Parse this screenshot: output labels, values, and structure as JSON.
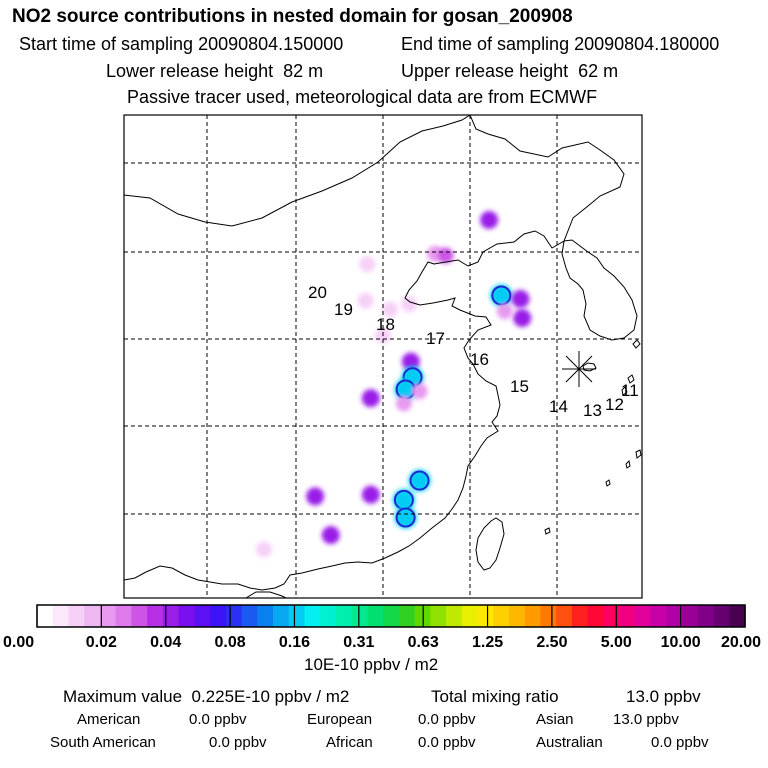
{
  "title": "NO2 source contributions in nested domain for gosan_200908",
  "header": {
    "start_label": "Start time of sampling",
    "start_value": "20090804.150000",
    "end_label": "End time of sampling",
    "end_value": "20090804.180000",
    "lower_label": "Lower release height",
    "lower_value": "82 m",
    "upper_label": "Upper release height",
    "upper_value": "62 m",
    "tracer_note": "Passive tracer used, meteorological data are from ECMWF"
  },
  "chart_data": {
    "type": "heatmap",
    "map_region": "East Asia (China, Korea, Japan)",
    "receptor": "gosan",
    "trajectory_labels": [
      "20",
      "19",
      "18",
      "17",
      "16",
      "15",
      "14",
      "13",
      "12",
      "11"
    ],
    "colorbar": {
      "unit": "10E-10 ppbv / m2",
      "tick_labels": [
        "0.00",
        "0.02",
        "0.04",
        "0.08",
        "0.16",
        "0.31",
        "0.63",
        "1.25",
        "2.50",
        "5.00",
        "10.00",
        "20.00"
      ],
      "colors": [
        "#ffffff",
        "#fbe8fb",
        "#f6d0f7",
        "#f0b8f3",
        "#e899f0",
        "#de7aeb",
        "#cc55e6",
        "#b830e6",
        "#9a1ee8",
        "#7a10ee",
        "#5c10f4",
        "#3c14f6",
        "#2a30f4",
        "#1a5af0",
        "#0a80f0",
        "#08a8f2",
        "#06ccf4",
        "#04f0f0",
        "#00f0d0",
        "#00eeb0",
        "#00ea90",
        "#00e070",
        "#10d848",
        "#30d020",
        "#60d800",
        "#90e000",
        "#c0e800",
        "#e8f000",
        "#ffe800",
        "#ffd000",
        "#ffb800",
        "#ff9a00",
        "#ff7800",
        "#ff5010",
        "#ff2020",
        "#ff0838",
        "#ff0060",
        "#f00080",
        "#e0009a",
        "#c800a8",
        "#b000a8",
        "#980098",
        "#800088",
        "#660070",
        "#4a0050"
      ]
    },
    "contribution_points": [
      {
        "lon": 126.1,
        "lat": 41.8,
        "value": 0.04
      },
      {
        "lon": 123.0,
        "lat": 39.9,
        "value": 0.02
      },
      {
        "lon": 123.6,
        "lat": 39.8,
        "value": 0.03
      },
      {
        "lon": 119.1,
        "lat": 39.3,
        "value": 0.01
      },
      {
        "lon": 119.0,
        "lat": 37.2,
        "value": 0.01
      },
      {
        "lon": 121.5,
        "lat": 37.0,
        "value": 0.01
      },
      {
        "lon": 120.4,
        "lat": 36.7,
        "value": 0.01
      },
      {
        "lon": 120.0,
        "lat": 35.2,
        "value": 0.01
      },
      {
        "lon": 126.8,
        "lat": 37.5,
        "value": 0.16
      },
      {
        "lon": 127.9,
        "lat": 37.3,
        "value": 0.04
      },
      {
        "lon": 128.0,
        "lat": 36.2,
        "value": 0.04
      },
      {
        "lon": 127.0,
        "lat": 36.6,
        "value": 0.02
      },
      {
        "lon": 121.6,
        "lat": 33.7,
        "value": 0.04
      },
      {
        "lon": 121.7,
        "lat": 32.8,
        "value": 0.16
      },
      {
        "lon": 121.3,
        "lat": 32.1,
        "value": 0.16
      },
      {
        "lon": 122.1,
        "lat": 32.0,
        "value": 0.02
      },
      {
        "lon": 121.2,
        "lat": 31.3,
        "value": 0.02
      },
      {
        "lon": 119.3,
        "lat": 31.6,
        "value": 0.04
      },
      {
        "lon": 122.1,
        "lat": 26.9,
        "value": 0.16
      },
      {
        "lon": 121.2,
        "lat": 25.8,
        "value": 0.16
      },
      {
        "lon": 121.3,
        "lat": 24.8,
        "value": 0.16
      },
      {
        "lon": 116.1,
        "lat": 26.0,
        "value": 0.04
      },
      {
        "lon": 119.3,
        "lat": 26.1,
        "value": 0.04
      },
      {
        "lon": 117.0,
        "lat": 23.8,
        "value": 0.04
      },
      {
        "lon": 113.2,
        "lat": 23.0,
        "value": 0.01
      }
    ]
  },
  "footer": {
    "max_label": "Maximum value",
    "max_value": "0.225E-10 ppbv / m2",
    "total_label": "Total mixing ratio",
    "total_value": "13.0 ppbv",
    "regions": [
      {
        "name": "American",
        "value": "0.0 ppbv"
      },
      {
        "name": "European",
        "value": "0.0 ppbv"
      },
      {
        "name": "Asian",
        "value": "13.0 ppbv"
      },
      {
        "name": "South American",
        "value": "0.0 ppbv"
      },
      {
        "name": "African",
        "value": "0.0 ppbv"
      },
      {
        "name": "Australian",
        "value": "0.0 ppbv"
      }
    ]
  }
}
